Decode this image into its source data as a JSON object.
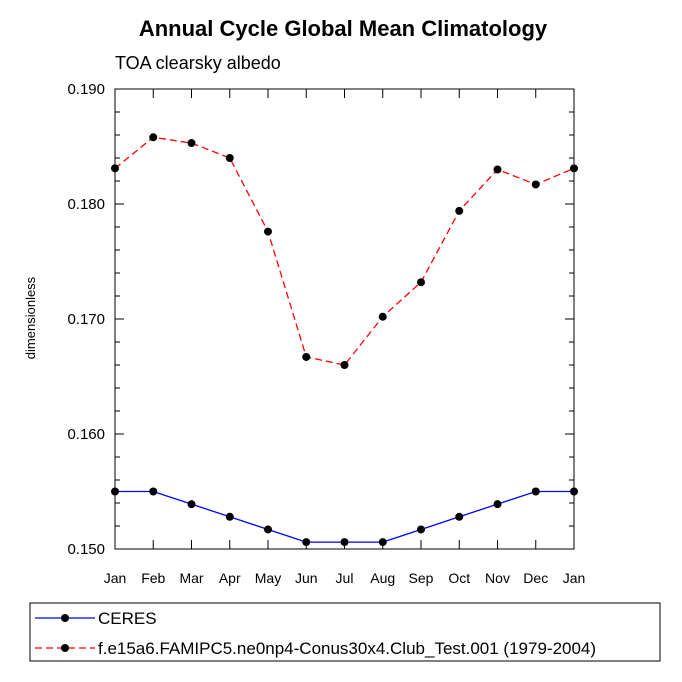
{
  "chart_data": {
    "type": "line",
    "title": "Annual Cycle Global Mean Climatology",
    "subtitle": "TOA clearsky albedo",
    "xlabel": "",
    "ylabel": "dimensionless",
    "categories": [
      "Jan",
      "Feb",
      "Mar",
      "Apr",
      "May",
      "Jun",
      "Jul",
      "Aug",
      "Sep",
      "Oct",
      "Nov",
      "Dec",
      "Jan"
    ],
    "ylim": [
      0.15,
      0.19
    ],
    "yticks": [
      "0.150",
      "0.160",
      "0.170",
      "0.180",
      "0.190"
    ],
    "grid": false,
    "legend_position": "bottom",
    "series": [
      {
        "name": "CERES",
        "color": "#0000ff",
        "style": "solid",
        "values": [
          0.155,
          0.155,
          0.1539,
          0.1528,
          0.1517,
          0.1506,
          0.1506,
          0.1506,
          0.1517,
          0.1528,
          0.1539,
          0.155,
          0.155
        ]
      },
      {
        "name": "f.e15a6.FAMIPC5.ne0np4-Conus30x4.Club_Test.001 (1979-2004)",
        "color": "#ff0000",
        "style": "dashed",
        "values": [
          0.1831,
          0.1858,
          0.1853,
          0.184,
          0.1776,
          0.1667,
          0.166,
          0.1702,
          0.1732,
          0.1794,
          0.183,
          0.1817,
          0.1831
        ]
      }
    ]
  }
}
